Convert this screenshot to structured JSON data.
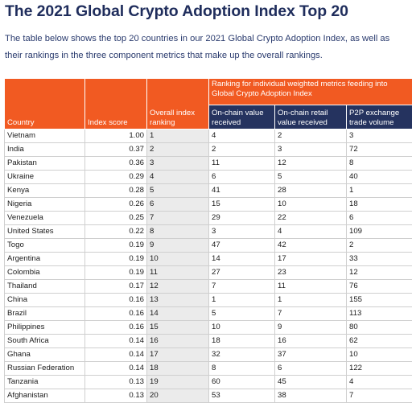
{
  "title": "The 2021 Global Crypto Adoption Index Top 20",
  "intro": "The table below shows the top 20 countries in our 2021 Global Crypto Adoption Index, as well as their rankings in the three component metrics that make up the overall rankings.",
  "table": {
    "headers": {
      "country": "Country",
      "index_score": "Index score",
      "overall": "Overall index ranking",
      "group": "Ranking for individual weighted metrics feeding into Global Crypto Adoption Index",
      "onchain_value": "On-chain value received",
      "onchain_retail": "On-chain retail value received",
      "p2p": "P2P exchange trade volume"
    },
    "colors": {
      "orange": "#f15a22",
      "navy": "#25335f"
    },
    "rows": [
      {
        "country": "Vietnam",
        "score": "1.00",
        "overall": "1",
        "onchain": "4",
        "retail": "2",
        "p2p": "3"
      },
      {
        "country": "India",
        "score": "0.37",
        "overall": "2",
        "onchain": "2",
        "retail": "3",
        "p2p": "72"
      },
      {
        "country": "Pakistan",
        "score": "0.36",
        "overall": "3",
        "onchain": "11",
        "retail": "12",
        "p2p": "8"
      },
      {
        "country": "Ukraine",
        "score": "0.29",
        "overall": "4",
        "onchain": "6",
        "retail": "5",
        "p2p": "40"
      },
      {
        "country": "Kenya",
        "score": "0.28",
        "overall": "5",
        "onchain": "41",
        "retail": "28",
        "p2p": "1"
      },
      {
        "country": "Nigeria",
        "score": "0.26",
        "overall": "6",
        "onchain": "15",
        "retail": "10",
        "p2p": "18"
      },
      {
        "country": "Venezuela",
        "score": "0.25",
        "overall": "7",
        "onchain": "29",
        "retail": "22",
        "p2p": "6"
      },
      {
        "country": "United States",
        "score": "0.22",
        "overall": "8",
        "onchain": "3",
        "retail": "4",
        "p2p": "109"
      },
      {
        "country": "Togo",
        "score": "0.19",
        "overall": "9",
        "onchain": "47",
        "retail": "42",
        "p2p": "2"
      },
      {
        "country": "Argentina",
        "score": "0.19",
        "overall": "10",
        "onchain": "14",
        "retail": "17",
        "p2p": "33"
      },
      {
        "country": "Colombia",
        "score": "0.19",
        "overall": "11",
        "onchain": "27",
        "retail": "23",
        "p2p": "12"
      },
      {
        "country": "Thailand",
        "score": "0.17",
        "overall": "12",
        "onchain": "7",
        "retail": "11",
        "p2p": "76"
      },
      {
        "country": "China",
        "score": "0.16",
        "overall": "13",
        "onchain": "1",
        "retail": "1",
        "p2p": "155"
      },
      {
        "country": "Brazil",
        "score": "0.16",
        "overall": "14",
        "onchain": "5",
        "retail": "7",
        "p2p": "113"
      },
      {
        "country": "Philippines",
        "score": "0.16",
        "overall": "15",
        "onchain": "10",
        "retail": "9",
        "p2p": "80"
      },
      {
        "country": "South Africa",
        "score": "0.14",
        "overall": "16",
        "onchain": "18",
        "retail": "16",
        "p2p": "62"
      },
      {
        "country": "Ghana",
        "score": "0.14",
        "overall": "17",
        "onchain": "32",
        "retail": "37",
        "p2p": "10"
      },
      {
        "country": "Russian Federation",
        "score": "0.14",
        "overall": "18",
        "onchain": "8",
        "retail": "6",
        "p2p": "122"
      },
      {
        "country": "Tanzania",
        "score": "0.13",
        "overall": "19",
        "onchain": "60",
        "retail": "45",
        "p2p": "4"
      },
      {
        "country": "Afghanistan",
        "score": "0.13",
        "overall": "20",
        "onchain": "53",
        "retail": "38",
        "p2p": "7"
      }
    ]
  }
}
